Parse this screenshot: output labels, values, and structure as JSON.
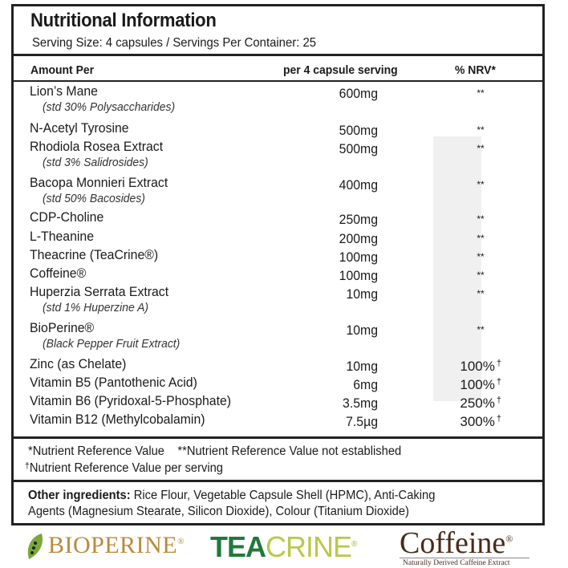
{
  "title": "Nutritional Information",
  "serving": "Serving Size: 4 capsules / Servings Per Container: 25",
  "headers": {
    "name": "Amount Per",
    "amount": "per 4 capsule serving",
    "nrv": "% NRV*"
  },
  "rows": [
    {
      "name": "Lion’s Mane",
      "sub": "(std 30% Polysaccharides)",
      "amount": "600mg",
      "nrv": "**",
      "dagger": ""
    },
    {
      "name": "N-Acetyl Tyrosine",
      "sub": "",
      "amount": "500mg",
      "nrv": "**",
      "dagger": ""
    },
    {
      "name": "Rhodiola Rosea Extract",
      "sub": "(std 3% Salidrosides)",
      "amount": "500mg",
      "nrv": "**",
      "dagger": ""
    },
    {
      "name": "Bacopa Monnieri  Extract",
      "sub": "(std 50% Bacosides)",
      "amount": "400mg",
      "nrv": "**",
      "dagger": ""
    },
    {
      "name": "CDP-Choline",
      "sub": "",
      "amount": "250mg",
      "nrv": "**",
      "dagger": ""
    },
    {
      "name": "L-Theanine",
      "sub": "",
      "amount": "200mg",
      "nrv": "**",
      "dagger": ""
    },
    {
      "name": "Theacrine (TeaCrine®)",
      "sub": "",
      "amount": "100mg",
      "nrv": "**",
      "dagger": ""
    },
    {
      "name": "Coffeine®",
      "sub": "",
      "amount": "100mg",
      "nrv": "**",
      "dagger": ""
    },
    {
      "name": "Huperzia Serrata Extract",
      "sub": "(std 1% Huperzine A)",
      "amount": "10mg",
      "nrv": "**",
      "dagger": ""
    },
    {
      "name": "BioPerine®",
      "sub": "(Black Pepper Fruit Extract)",
      "amount": "10mg",
      "nrv": "**",
      "dagger": ""
    },
    {
      "name": "Zinc (as Chelate)",
      "sub": "",
      "amount": "10mg",
      "nrv": "100%",
      "dagger": "†"
    },
    {
      "name": "Vitamin B5 (Pantothenic Acid)",
      "sub": "",
      "amount": "6mg",
      "nrv": "100%",
      "dagger": "†"
    },
    {
      "name": "Vitamin B6 (Pyridoxal-5-Phosphate)",
      "sub": "",
      "amount": "3.5mg",
      "nrv": "250%",
      "dagger": "†"
    },
    {
      "name": "Vitamin B12 (Methylcobalamin)",
      "sub": "",
      "amount": "7.5µg",
      "nrv": "300%",
      "dagger": "†"
    }
  ],
  "footnotes": {
    "nrv": "*Nutrient Reference Value",
    "not_established": "**Nutrient Reference Value not established",
    "dagger_mark": "†",
    "per_serving": "Nutrient Reference Value per serving"
  },
  "other": {
    "label": "Other ingredients:",
    "line1": " Rice Flour, Vegetable Capsule Shell (HPMC), Anti-Caking",
    "line2": "Agents (Magnesium Stearate, Silicon Dioxide), Colour (Titanium Dioxide)"
  },
  "logos": {
    "bioperine": "BIOPERINE",
    "teacrine_a": "TEA",
    "teacrine_b": "CRINE",
    "coffeine": "Coffeine",
    "coffeine_tag": "Naturally Derived Caffeine Extract",
    "reg": "®"
  },
  "colors": {
    "bioperine": "#b88a3c",
    "tea_green": "#1f7a3a",
    "crine_lime": "#b8c94a",
    "coffeine_brown": "#4a2a1a"
  }
}
